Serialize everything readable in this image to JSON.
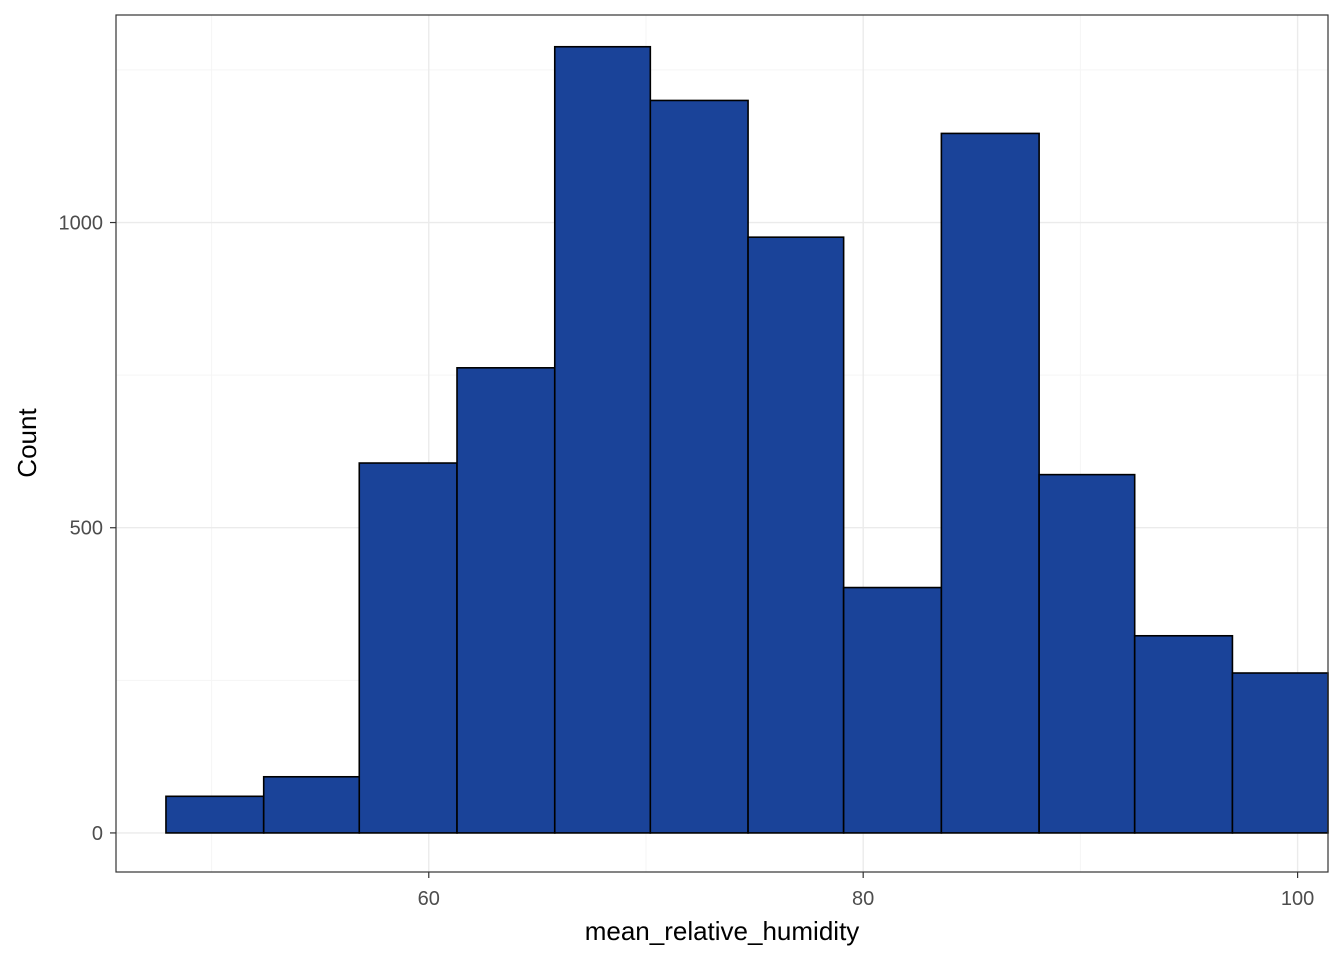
{
  "chart_data": {
    "type": "bar",
    "title": "",
    "xlabel": "mean_relative_humidity",
    "ylabel": "Count",
    "xlim": [
      45.6,
      101.4
    ],
    "ylim": [
      -64,
      1340
    ],
    "x_ticks": [
      60,
      80,
      100
    ],
    "y_ticks": [
      0,
      500,
      1000
    ],
    "grid": true,
    "bins": [
      {
        "x0": 47.9,
        "x1": 52.4,
        "count": 60
      },
      {
        "x0": 52.4,
        "x1": 56.8,
        "count": 92
      },
      {
        "x0": 56.8,
        "x1": 61.3,
        "count": 606
      },
      {
        "x0": 61.3,
        "x1": 65.8,
        "count": 762
      },
      {
        "x0": 65.8,
        "x1": 70.2,
        "count": 1288
      },
      {
        "x0": 70.2,
        "x1": 74.7,
        "count": 1200
      },
      {
        "x0": 74.7,
        "x1": 79.1,
        "count": 976
      },
      {
        "x0": 79.1,
        "x1": 83.6,
        "count": 402
      },
      {
        "x0": 83.6,
        "x1": 88.1,
        "count": 1146
      },
      {
        "x0": 88.1,
        "x1": 92.5,
        "count": 587
      },
      {
        "x0": 92.5,
        "x1": 97.0,
        "count": 323
      },
      {
        "x0": 97.0,
        "x1": 101.4,
        "count": 262
      }
    ],
    "colors": {
      "bar_fill": "#1A4399",
      "bar_outline": "#000000",
      "grid_major": "#EBEBEB",
      "grid_minor": "#F5F5F5",
      "panel_border": "#333333",
      "tick_text": "#4D4D4D"
    }
  }
}
